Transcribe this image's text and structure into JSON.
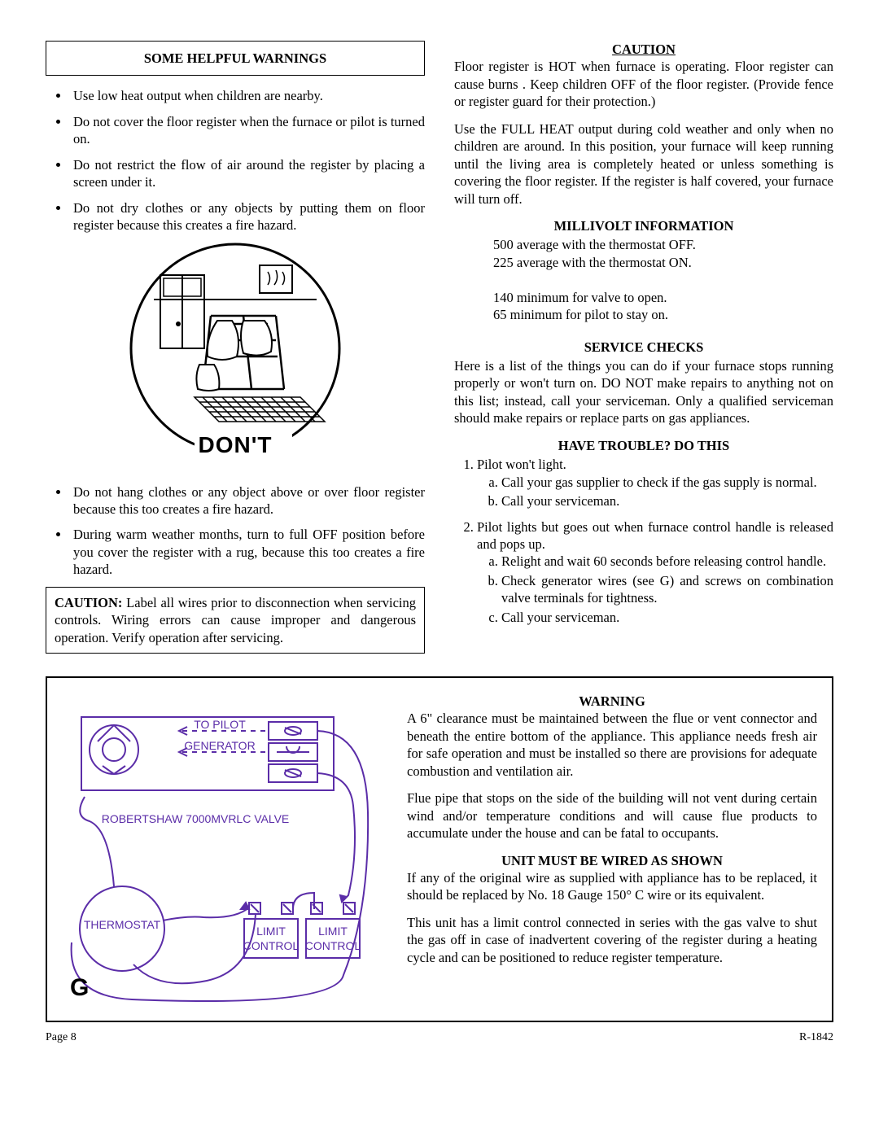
{
  "left": {
    "box_title": "SOME HELPFUL WARNINGS",
    "warnings_a": [
      "Use low heat output when children are nearby.",
      "Do not cover the floor register when the furnace or pilot is turned on.",
      "Do not restrict the flow of air around the register by placing a screen under it.",
      "Do not dry clothes or any objects by putting them on floor register because this creates a fire hazard."
    ],
    "dont_label": "DON'T",
    "warnings_b": [
      "Do not hang clothes or any object above or over floor register because this too creates a fire hazard.",
      "During warm weather months, turn to full OFF position before you cover the register with a rug, because this too creates a fire hazard."
    ],
    "caution_lead": "CAUTION:",
    "caution_text": " Label all wires prior to disconnection when servicing controls. Wiring errors can cause improper and dangerous operation. Verify operation after servicing."
  },
  "right": {
    "caution_head": "CAUTION",
    "caution_para": "Floor register is HOT when furnace is operating. Floor register can cause burns . Keep children OFF of the floor register. (Provide fence or register guard for their protection.)",
    "full_heat": "Use the FULL HEAT output during cold weather and only when no children are around. In this position, your furnace will keep running until the living area is completely heated or unless something is covering the floor register. If the register is half covered, your furnace will turn off.",
    "millivolt_head": "MILLIVOLT INFORMATION",
    "millivolt_lines": [
      "500 average with the thermostat OFF.",
      "225 average with the thermostat ON.",
      "",
      "140 minimum for valve to open.",
      "65 minimum for pilot to stay on."
    ],
    "service_head": "SERVICE CHECKS",
    "service_para": "Here is a list of the things you can do if your furnace stops running properly or won't turn on. DO NOT make repairs to anything not on this list; instead, call your serviceman. Only a qualified serviceman should make repairs or replace parts on gas appliances.",
    "trouble_head": "HAVE TROUBLE? DO THIS",
    "trouble": [
      {
        "t": "Pilot won't light.",
        "sub": [
          "Call your gas supplier to check if the gas supply is normal.",
          "Call your serviceman."
        ]
      },
      {
        "t": "Pilot lights but goes out when furnace control handle is released and pops up.",
        "sub": [
          "Relight and wait 60 seconds before releasing control handle.",
          "Check generator wires (see G) and screws on combination valve terminals for tightness.",
          "Call your serviceman."
        ]
      }
    ]
  },
  "bottom": {
    "diagram": {
      "color": "#5b2da8",
      "to_pilot": "TO PILOT",
      "generator": "GENERATOR",
      "valve": "ROBERTSHAW 7000MVRLC VALVE",
      "thermostat": "THERMOSTAT",
      "limit": "LIMIT",
      "control": "CONTROL",
      "g_label": "G"
    },
    "warning_head": "WARNING",
    "warning_para": "A 6\" clearance must be maintained between the flue or vent connector and beneath the entire bottom of the appliance. This appliance needs fresh air for safe operation and must be installed so there are provisions for adequate combustion and ventilation air.",
    "flue_para": "Flue pipe that stops on the side of the building will not vent during certain wind and/or temperature conditions and will cause flue products to accumulate under the house and can be fatal to occupants.",
    "wired_head": "UNIT MUST BE WIRED AS SHOWN",
    "wired_para1": "If any of the original wire as supplied with appliance has to be replaced, it should be replaced by No. 18 Gauge 150° C wire or its equivalent.",
    "wired_para2": "This unit has a limit control connected in series with the gas valve to shut the gas off in case of inadvertent covering of the register during a heating cycle and can be positioned to reduce register temperature."
  },
  "footer": {
    "left": "Page 8",
    "right": "R-1842"
  }
}
